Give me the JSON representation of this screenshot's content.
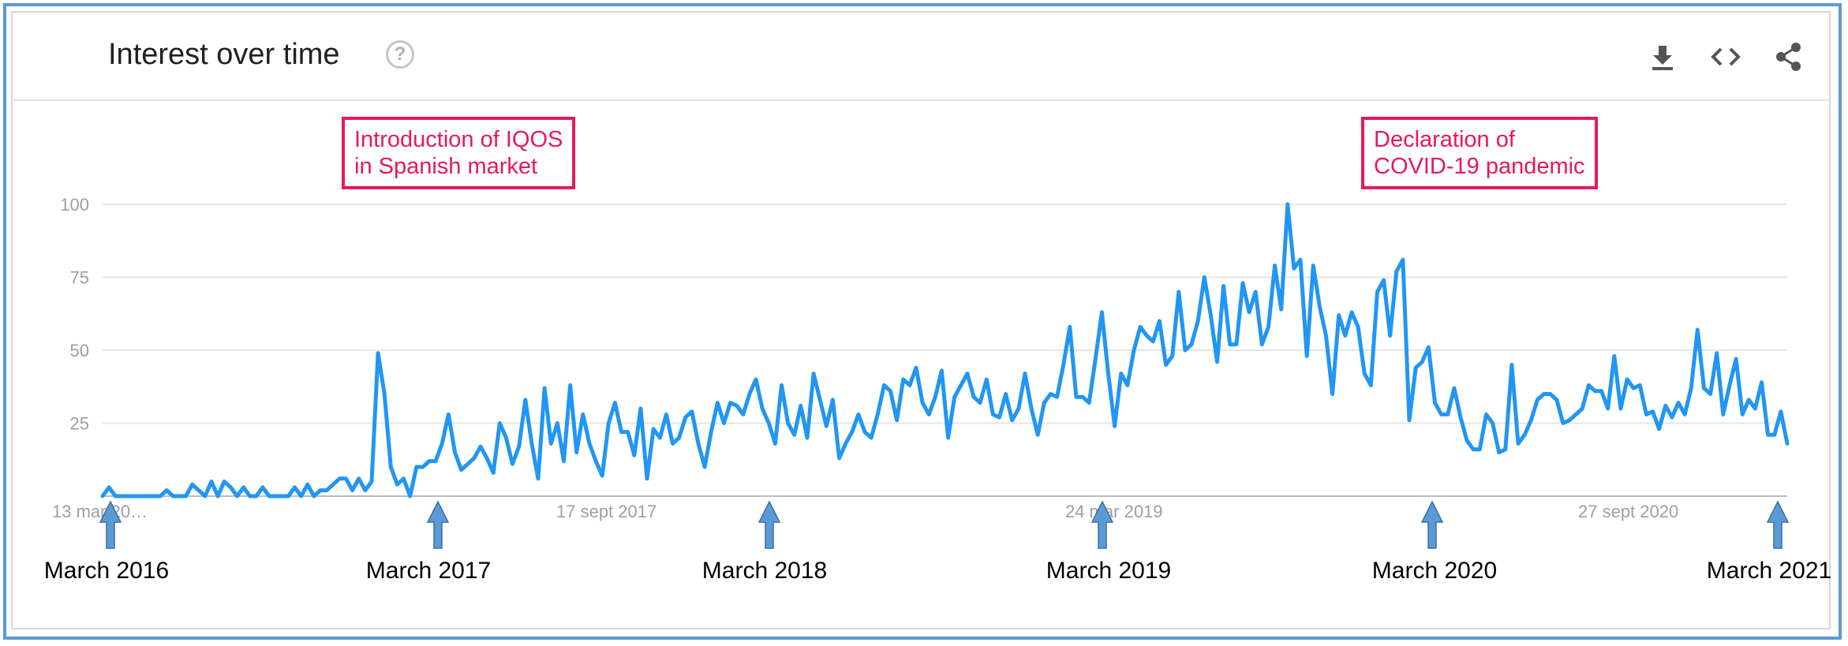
{
  "header": {
    "title": "Interest over time",
    "help_glyph": "?",
    "icons": [
      "help-icon",
      "download-icon",
      "embed-icon",
      "share-icon"
    ]
  },
  "colors": {
    "line": "#2196f3",
    "annotation": "#e8195a",
    "arrow": "#5b9bd5",
    "frame": "#5b9bd5"
  },
  "chart_data": {
    "type": "line",
    "title": "Interest over time",
    "ylim": [
      0,
      100
    ],
    "yticks": [
      "25",
      "50",
      "75",
      "100"
    ],
    "xticks": [
      "13 mar 20…",
      "17 sept 2017",
      "24 mar 2019",
      "27 sept 2020"
    ],
    "grid": true,
    "legend": "none",
    "series": [
      {
        "values": [
          0,
          3,
          0,
          0,
          0,
          0,
          0,
          0,
          0,
          0,
          2,
          0,
          0,
          0,
          4,
          2,
          0,
          5,
          0,
          5,
          3,
          0,
          3,
          0,
          0,
          3,
          0,
          0,
          0,
          0,
          3,
          0,
          4,
          0,
          2,
          2,
          4,
          6,
          6,
          2,
          6,
          2,
          5,
          49,
          35,
          10,
          4,
          6,
          0,
          10,
          10,
          12,
          12,
          18,
          28,
          15,
          9,
          11,
          13,
          17,
          13,
          8,
          25,
          20,
          11,
          17,
          33,
          18,
          6,
          37,
          18,
          25,
          12,
          38,
          15,
          28,
          18,
          12,
          7,
          25,
          32,
          22,
          22,
          14,
          30,
          6,
          23,
          20,
          28,
          18,
          20,
          27,
          29,
          18,
          10,
          22,
          32,
          25,
          32,
          31,
          28,
          35,
          40,
          30,
          25,
          18,
          38,
          25,
          21,
          31,
          20,
          42,
          33,
          24,
          33,
          13,
          18,
          22,
          28,
          22,
          20,
          28,
          38,
          36,
          26,
          40,
          38,
          44,
          32,
          28,
          34,
          43,
          20,
          34,
          38,
          42,
          34,
          32,
          40,
          28,
          27,
          35,
          26,
          30,
          42,
          30,
          21,
          32,
          35,
          34,
          45,
          58,
          34,
          34,
          32,
          47,
          63,
          42,
          24,
          42,
          38,
          50,
          58,
          55,
          53,
          60,
          45,
          48,
          70,
          50,
          52,
          60,
          75,
          62,
          46,
          72,
          52,
          52,
          73,
          63,
          70,
          52,
          58,
          79,
          64,
          100,
          78,
          81,
          48,
          79,
          65,
          55,
          35,
          62,
          55,
          63,
          58,
          42,
          38,
          70,
          74,
          55,
          77,
          81,
          26,
          44,
          46,
          51,
          32,
          28,
          28,
          37,
          27,
          19,
          16,
          16,
          28,
          25,
          15,
          16,
          45,
          18,
          21,
          26,
          33,
          35,
          35,
          33,
          25,
          26,
          28,
          30,
          38,
          36,
          36,
          30,
          48,
          30,
          40,
          37,
          38,
          28,
          29,
          23,
          31,
          27,
          32,
          28,
          37,
          57,
          37,
          35,
          49,
          28,
          38,
          47,
          28,
          33,
          30,
          39,
          21,
          21,
          29,
          18
        ]
      }
    ],
    "annotations": [
      {
        "lines": [
          "Introduction of IQOS",
          "in Spanish market"
        ]
      },
      {
        "lines": [
          "Declaration of",
          "COVID-19 pandemic"
        ]
      }
    ],
    "markers": [
      "March 2016",
      "March 2017",
      "March 2018",
      "March 2019",
      "March 2020",
      "March 2021"
    ]
  }
}
